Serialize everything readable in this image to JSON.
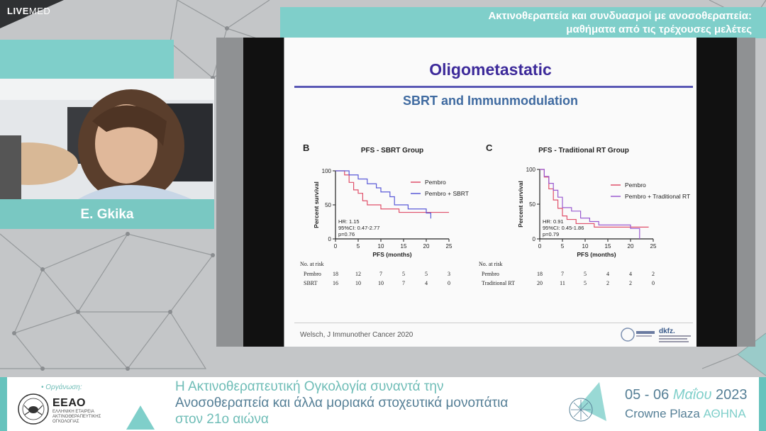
{
  "brand": {
    "live": "LIVE",
    "med": "MED"
  },
  "session_title": {
    "line1": "Ακτινοθεραπεία και συνδυασμοί με ανοσοθεραπεία:",
    "line2": "μαθήματα από τις τρέχουσες μελέτες"
  },
  "speaker": {
    "name": "E. Gkika"
  },
  "slide": {
    "title": "Oligometastatic",
    "subtitle": "SBRT and Immunmodulation",
    "citation": "Welsch, J Immunother Cancer  2020",
    "logo_text": "dkfz."
  },
  "chart_data": [
    {
      "type": "line",
      "panel": "B",
      "title": "PFS - SBRT Group",
      "xlabel": "PFS (months)",
      "ylabel": "Percent survival",
      "xlim": [
        0,
        25
      ],
      "ylim": [
        0,
        100
      ],
      "xticks": [
        "0",
        "5",
        "10",
        "15",
        "20",
        "25"
      ],
      "yticks": [
        "0",
        "50",
        "100"
      ],
      "series": [
        {
          "name": "Pembro",
          "color": "#e0506a",
          "x": [
            0,
            2,
            3,
            4,
            5,
            6,
            7,
            8,
            10,
            11,
            14,
            21,
            25
          ],
          "y": [
            100,
            94,
            83,
            72,
            67,
            56,
            50,
            50,
            44,
            44,
            39,
            39,
            39
          ]
        },
        {
          "name": "Pembro + SBRT",
          "color": "#5a5ad8",
          "x": [
            0,
            2,
            3,
            5,
            7,
            9,
            10,
            12,
            13,
            16,
            19,
            20,
            21
          ],
          "y": [
            100,
            100,
            94,
            88,
            81,
            75,
            69,
            62,
            50,
            44,
            44,
            38,
            30
          ]
        }
      ],
      "stats": [
        "HR: 1.15",
        "95%CI: 0.47-2.77",
        "p=0.76"
      ],
      "risk": {
        "label": "No. at risk",
        "rows": [
          {
            "name": "Pembro",
            "values": [
              "18",
              "12",
              "7",
              "5",
              "5",
              "3"
            ]
          },
          {
            "name": "SBRT",
            "values": [
              "16",
              "10",
              "10",
              "7",
              "4",
              "0"
            ]
          }
        ]
      }
    },
    {
      "type": "line",
      "panel": "C",
      "title": "PFS - Traditional RT Group",
      "xlabel": "PFS (months)",
      "ylabel": "Percent survival",
      "xlim": [
        0,
        25
      ],
      "ylim": [
        0,
        100
      ],
      "xticks": [
        "0",
        "5",
        "10",
        "15",
        "20",
        "25"
      ],
      "yticks": [
        "0",
        "50",
        "100"
      ],
      "series": [
        {
          "name": "Pembro",
          "color": "#e0506a",
          "x": [
            0,
            1,
            2,
            3,
            4,
            5,
            6,
            8,
            10,
            12,
            15,
            24
          ],
          "y": [
            100,
            89,
            72,
            56,
            44,
            33,
            28,
            22,
            22,
            17,
            17,
            17
          ]
        },
        {
          "name": "Pembro + Traditional RT",
          "color": "#9a5ad0",
          "x": [
            0,
            1,
            2,
            3,
            4,
            5,
            7,
            9,
            11,
            13,
            15,
            20,
            22
          ],
          "y": [
            100,
            90,
            80,
            70,
            60,
            45,
            40,
            30,
            25,
            20,
            20,
            15,
            0
          ]
        }
      ],
      "stats": [
        "HR: 0.91",
        "95%CI: 0.45-1.86",
        "p=0.79"
      ],
      "risk": {
        "label": "No. at risk",
        "rows": [
          {
            "name": "Pembro",
            "values": [
              "18",
              "7",
              "5",
              "4",
              "4",
              "2"
            ]
          },
          {
            "name": "Traditional RT",
            "values": [
              "20",
              "11",
              "5",
              "2",
              "2",
              "0"
            ]
          }
        ]
      }
    }
  ],
  "footer": {
    "org_label": "• Οργάνωση:",
    "org_name": "ΕΕΑΟ",
    "org_desc": "ΕΛΛΗΝΙΚΗ ΕΤΑΙΡΕΙΑ ΑΚΤΙΝΟΘΕΡΑΠΕΥΤΙΚΗΣ ΟΓΚΟΛΟΓΙΑΣ",
    "conf_line1": "Η Ακτινοθεραπευτική Ογκολογία συναντά την",
    "conf_line2": "Ανοσοθεραπεία και άλλα μοριακά στοχευτικά μονοπάτια",
    "conf_line3": "στον 21ο αιώνα",
    "dates_a": "05 - 06 ",
    "dates_month": "Μαΐου",
    "dates_year": " 2023",
    "venue_a": "Crowne Plaza ",
    "venue_city": "ΑΘΗΝΑ"
  }
}
